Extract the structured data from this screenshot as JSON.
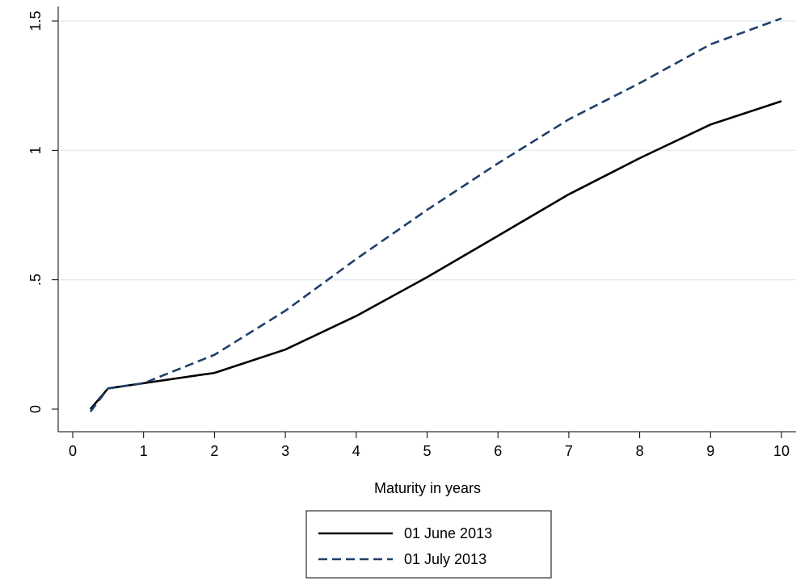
{
  "chart_data": {
    "type": "line",
    "xlabel": "Maturity in years",
    "ylabel": "",
    "xlim": [
      0,
      10
    ],
    "ylim": [
      0,
      1.5
    ],
    "x_ticks": [
      0,
      1,
      2,
      3,
      4,
      5,
      6,
      7,
      8,
      9,
      10
    ],
    "x_tick_labels": [
      "0",
      "1",
      "2",
      "3",
      "4",
      "5",
      "6",
      "7",
      "8",
      "9",
      "10"
    ],
    "y_ticks": [
      0,
      0.5,
      1,
      1.5
    ],
    "y_tick_labels": [
      "0",
      ".5",
      "1",
      "1.5"
    ],
    "grid": "horizontal",
    "legend_position": "bottom",
    "series": [
      {
        "name": "01 June 2013",
        "color": "#000000",
        "dash": "solid",
        "x": [
          0.25,
          0.5,
          1,
          2,
          3,
          4,
          5,
          6,
          7,
          8,
          9,
          10
        ],
        "y": [
          0.0,
          0.08,
          0.1,
          0.14,
          0.23,
          0.36,
          0.51,
          0.67,
          0.83,
          0.97,
          1.1,
          1.19
        ]
      },
      {
        "name": "01 July 2013",
        "color": "#1f3f6a",
        "dash": "dashed",
        "x": [
          0.25,
          0.5,
          1,
          2,
          3,
          4,
          5,
          6,
          7,
          8,
          9,
          10
        ],
        "y": [
          -0.01,
          0.08,
          0.1,
          0.21,
          0.38,
          0.58,
          0.77,
          0.95,
          1.12,
          1.26,
          1.41,
          1.51
        ]
      }
    ]
  }
}
